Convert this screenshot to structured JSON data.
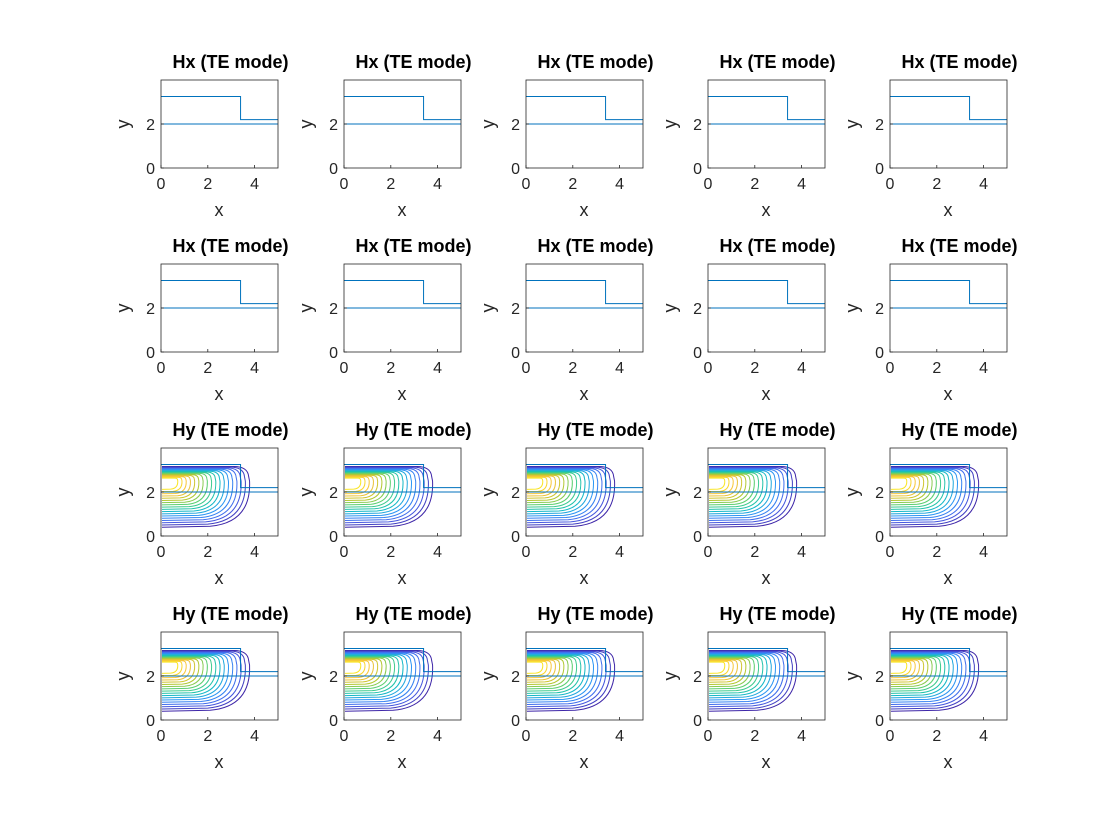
{
  "figure": {
    "rows": 4,
    "cols": 5,
    "axis_color": "#262626",
    "waveguide_color": "#0072BD"
  },
  "chart_data": [
    {
      "row": 0,
      "type": "contour",
      "title": "Hx (TE mode)",
      "xlabel": "x",
      "ylabel": "y",
      "xlim": [
        0,
        5
      ],
      "ylim": [
        0,
        4
      ],
      "xticks": [
        "0",
        "2",
        "4"
      ],
      "yticks": [
        "0",
        "2"
      ],
      "contour_levels": 0,
      "waveguide_outline": {
        "top_y": 3.25,
        "step_x": 3.4,
        "rib_y": 2.2,
        "substrate_y": 2.0
      }
    },
    {
      "row": 1,
      "type": "contour",
      "title": "Hx (TE mode)",
      "xlabel": "x",
      "ylabel": "y",
      "xlim": [
        0,
        5
      ],
      "ylim": [
        0,
        4
      ],
      "xticks": [
        "0",
        "2",
        "4"
      ],
      "yticks": [
        "0",
        "2"
      ],
      "contour_levels": 0,
      "waveguide_outline": {
        "top_y": 3.25,
        "step_x": 3.4,
        "rib_y": 2.2,
        "substrate_y": 2.0
      }
    },
    {
      "row": 2,
      "type": "contour",
      "title": "Hy (TE mode)",
      "xlabel": "x",
      "ylabel": "y",
      "xlim": [
        0,
        5
      ],
      "ylim": [
        0,
        4
      ],
      "xticks": [
        "0",
        "2",
        "4"
      ],
      "yticks": [
        "0",
        "2"
      ],
      "contour_levels": 18,
      "waveguide_outline": {
        "top_y": 3.25,
        "step_x": 3.4,
        "rib_y": 2.2,
        "substrate_y": 2.0
      },
      "field_peak": {
        "x": 0,
        "y": 2.5
      },
      "colormap": [
        "#3E26A8",
        "#4662EA",
        "#2D93F7",
        "#10BDBF",
        "#50D07A",
        "#B9C72D",
        "#F8C03C",
        "#F9E526"
      ]
    },
    {
      "row": 3,
      "type": "contour",
      "title": "Hy (TE mode)",
      "xlabel": "x",
      "ylabel": "y",
      "xlim": [
        0,
        5
      ],
      "ylim": [
        0,
        4
      ],
      "xticks": [
        "0",
        "2",
        "4"
      ],
      "yticks": [
        "0",
        "2"
      ],
      "contour_levels": 18,
      "waveguide_outline": {
        "top_y": 3.25,
        "step_x": 3.4,
        "rib_y": 2.2,
        "substrate_y": 2.0
      },
      "field_peak": {
        "x": 0,
        "y": 2.5
      },
      "colormap": [
        "#3E26A8",
        "#4662EA",
        "#2D93F7",
        "#10BDBF",
        "#50D07A",
        "#B9C72D",
        "#F8C03C",
        "#F9E526"
      ]
    }
  ]
}
